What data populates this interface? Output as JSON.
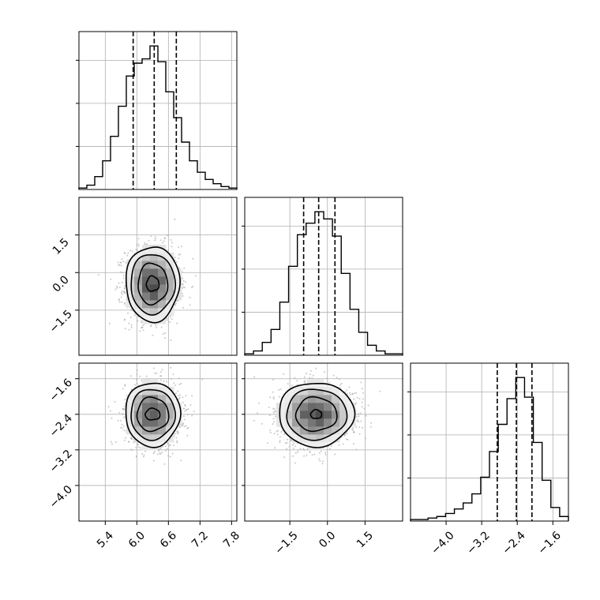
{
  "chart_data": {
    "type": "corner",
    "colors": {
      "line": "#000000",
      "grid": "#b0b0b0",
      "scatter": "#9a9a9a",
      "background": "#ffffff"
    },
    "grid": true,
    "histograms": [
      {
        "param": 0,
        "range": [
          4.9,
          7.9
        ],
        "quantiles": [
          5.93,
          6.33,
          6.75
        ],
        "counts": [
          1,
          3,
          9,
          20,
          37,
          58,
          79,
          88,
          91,
          100,
          89,
          68,
          50,
          33,
          20,
          12,
          7,
          4,
          2,
          1
        ]
      },
      {
        "param": 1,
        "range": [
          -3.3,
          3.0
        ],
        "quantiles": [
          -0.95,
          -0.35,
          0.3
        ],
        "counts": [
          1,
          3,
          9,
          18,
          37,
          62,
          84,
          92,
          100,
          95,
          83,
          57,
          32,
          16,
          7,
          3,
          1,
          1
        ]
      },
      {
        "param": 2,
        "range": [
          -4.8,
          -1.25
        ],
        "quantiles": [
          -2.85,
          -2.42,
          -2.07
        ],
        "counts": [
          1,
          1,
          2,
          3,
          5,
          8,
          12,
          18,
          29,
          46,
          64,
          81,
          95,
          82,
          52,
          27,
          9,
          3
        ]
      }
    ],
    "panels": [
      {
        "x_param": 0,
        "y_param": 1,
        "xlim": [
          4.9,
          7.9
        ],
        "ylim": [
          -3.3,
          3.0
        ],
        "center": [
          6.3,
          -0.45
        ],
        "contours": [
          {
            "rx": 0.51,
            "ry": 1.5,
            "amp": 0.03,
            "phase": 0.0
          },
          {
            "rx": 0.42,
            "ry": 1.2,
            "amp": 0.03,
            "phase": 0.9
          },
          {
            "rx": 0.28,
            "ry": 0.82,
            "amp": 0.04,
            "phase": 1.7
          },
          {
            "rx": 0.12,
            "ry": 0.3,
            "amp": 0.06,
            "phase": 2.5
          }
        ]
      },
      {
        "x_param": 0,
        "y_param": 2,
        "xlim": [
          4.9,
          7.9
        ],
        "ylim": [
          -4.8,
          -1.25
        ],
        "center": [
          6.3,
          -2.4
        ],
        "contours": [
          {
            "rx": 0.52,
            "ry": 0.72,
            "amp": 0.03,
            "phase": 0.3
          },
          {
            "rx": 0.42,
            "ry": 0.57,
            "amp": 0.03,
            "phase": 1.1
          },
          {
            "rx": 0.3,
            "ry": 0.38,
            "amp": 0.04,
            "phase": 2.0
          },
          {
            "rx": 0.14,
            "ry": 0.13,
            "amp": 0.05,
            "phase": 2.8
          }
        ]
      },
      {
        "x_param": 1,
        "y_param": 2,
        "xlim": [
          -3.3,
          3.0
        ],
        "ylim": [
          -4.8,
          -1.25
        ],
        "center": [
          -0.45,
          -2.4
        ],
        "contours": [
          {
            "rx": 1.5,
            "ry": 0.72,
            "amp": 0.03,
            "phase": 0.5
          },
          {
            "rx": 1.2,
            "ry": 0.57,
            "amp": 0.03,
            "phase": 1.4
          },
          {
            "rx": 0.82,
            "ry": 0.38,
            "amp": 0.04,
            "phase": 2.2
          },
          {
            "rx": 0.22,
            "ry": 0.1,
            "amp": 0.05,
            "phase": 3.0
          }
        ]
      }
    ],
    "ticks": {
      "param0": [
        "5.4",
        "6.0",
        "6.6",
        "7.2",
        "7.8"
      ],
      "param0_values": [
        5.4,
        6.0,
        6.6,
        7.2,
        7.8
      ],
      "param1": [
        "−1.5",
        "0.0",
        "1.5"
      ],
      "param1_values": [
        -1.5,
        0.0,
        1.5
      ],
      "param2": [
        "−4.0",
        "−3.2",
        "−2.4",
        "−1.6"
      ],
      "param2_values": [
        -4.0,
        -3.2,
        -2.4,
        -1.6
      ]
    }
  }
}
